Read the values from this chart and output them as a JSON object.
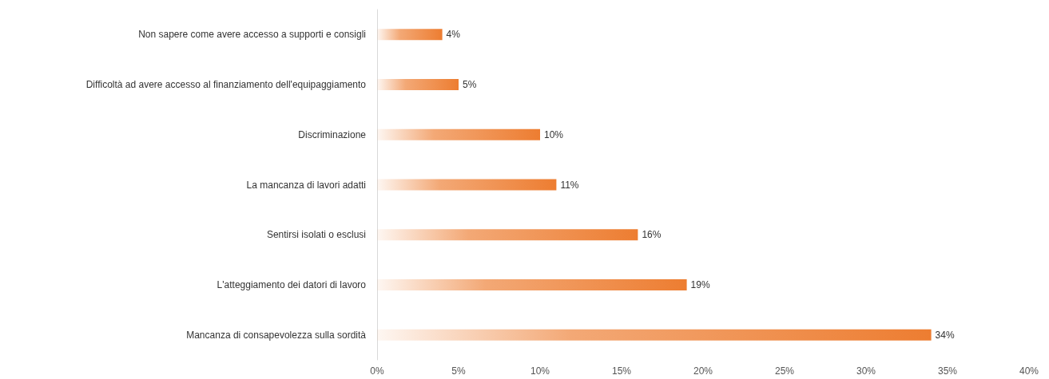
{
  "chart_data": {
    "type": "bar",
    "orientation": "horizontal",
    "categories": [
      "Non sapere come avere accesso a supporti e consigli",
      "Difficoltà ad avere accesso al finanziamento dell'equipaggiamento",
      "Discriminazione",
      "La mancanza di lavori adatti",
      "Sentirsi isolati o esclusi",
      "L'atteggiamento dei datori di lavoro",
      "Mancanza di consapevolezza sulla sordità"
    ],
    "values": [
      4,
      5,
      10,
      11,
      16,
      19,
      34
    ],
    "value_labels": [
      "4%",
      "5%",
      "10%",
      "11%",
      "16%",
      "19%",
      "34%"
    ],
    "color": "#ed7d31",
    "xlim": [
      0,
      40
    ],
    "xticks": [
      {
        "value": 0,
        "label": "0%"
      },
      {
        "value": 5,
        "label": "5%"
      },
      {
        "value": 10,
        "label": "10%"
      },
      {
        "value": 15,
        "label": "15%"
      },
      {
        "value": 20,
        "label": "20%"
      },
      {
        "value": 25,
        "label": "25%"
      },
      {
        "value": 30,
        "label": "30%"
      },
      {
        "value": 35,
        "label": "35%"
      },
      {
        "value": 40,
        "label": "40%"
      }
    ],
    "grid": false
  }
}
